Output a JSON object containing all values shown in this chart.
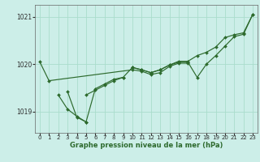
{
  "title": "Graphe pression niveau de la mer (hPa)",
  "bg_color": "#cceee8",
  "grid_color": "#aaddcc",
  "line_color": "#2d6a2d",
  "xlim": [
    -0.5,
    23.5
  ],
  "ylim": [
    1018.55,
    1021.25
  ],
  "yticks": [
    1019,
    1020,
    1021
  ],
  "xticks": [
    0,
    1,
    2,
    3,
    4,
    5,
    6,
    7,
    8,
    9,
    10,
    11,
    12,
    13,
    14,
    15,
    16,
    17,
    18,
    19,
    20,
    21,
    22,
    23
  ],
  "series": [
    [
      0,
      1020.05,
      1,
      1019.65,
      10,
      1019.88,
      11,
      1019.85,
      12,
      1019.78,
      13,
      1019.82,
      14,
      1019.95,
      15,
      1020.02,
      16,
      1020.02
    ],
    [
      2,
      1019.35,
      3,
      1019.05,
      4,
      1018.9,
      5,
      1018.78,
      6,
      1019.48,
      7,
      1019.58,
      8,
      1019.68,
      9,
      1019.72,
      10,
      1019.93,
      11,
      1019.88,
      12,
      1019.82,
      13,
      1019.88,
      14,
      1019.98,
      15,
      1020.04,
      16,
      1020.04,
      17,
      1019.72,
      18,
      1020.0,
      19,
      1020.18,
      20,
      1020.38,
      21,
      1020.58,
      22,
      1020.63,
      23,
      1021.05
    ],
    [
      5,
      1019.35,
      6,
      1019.45,
      7,
      1019.55,
      8,
      1019.65,
      9,
      1019.72
    ],
    [
      10,
      1019.93,
      11,
      1019.88,
      12,
      1019.82,
      13,
      1019.88,
      14,
      1019.98,
      15,
      1020.06,
      16,
      1020.06,
      17,
      1020.18,
      18,
      1020.25,
      19,
      1020.36,
      20,
      1020.56,
      21,
      1020.62,
      22,
      1020.66,
      23,
      1021.05
    ],
    [
      3,
      1019.42,
      4,
      1018.88,
      5,
      1018.78
    ]
  ]
}
